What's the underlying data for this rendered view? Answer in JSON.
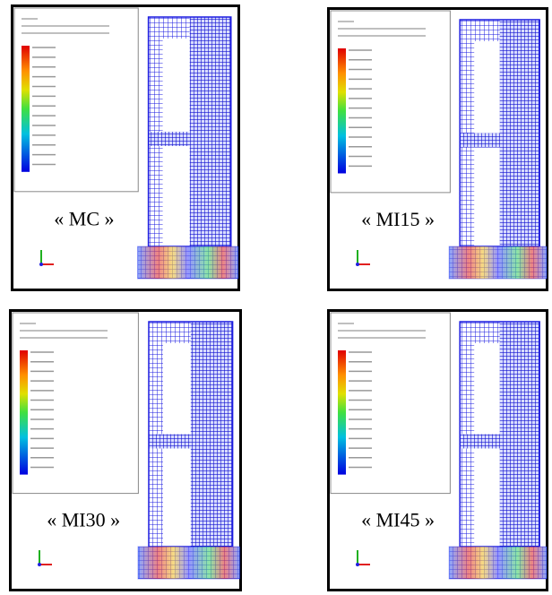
{
  "panels": [
    {
      "label": "« MC »"
    },
    {
      "label": "« MI15 »"
    },
    {
      "label": "« MI30 »"
    },
    {
      "label": "« MI45 »"
    }
  ]
}
